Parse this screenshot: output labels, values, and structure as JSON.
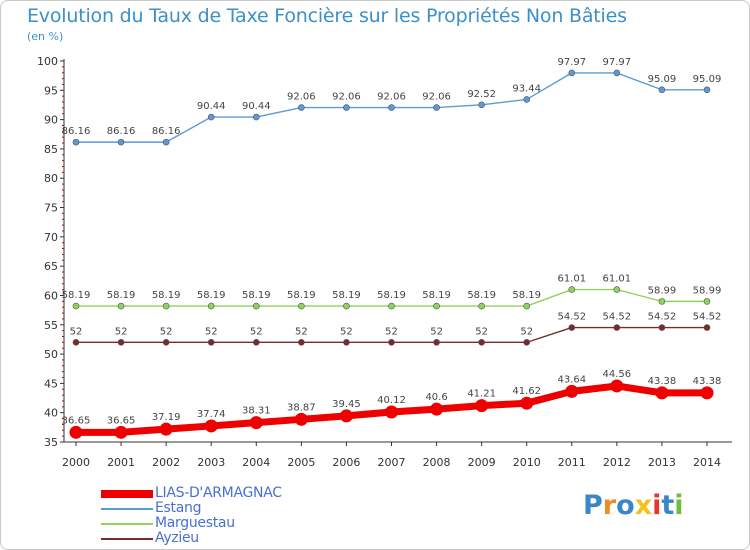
{
  "chart_data": {
    "type": "line",
    "title": "Evolution du Taux de Taxe Foncière sur les Propriétés Non Bâties",
    "subtitle": "(en %)",
    "x": [
      "2000",
      "2001",
      "2002",
      "2003",
      "2004",
      "2005",
      "2006",
      "2007",
      "2008",
      "2009",
      "2010",
      "2011",
      "2012",
      "2013",
      "2014"
    ],
    "ylim": [
      35,
      100
    ],
    "yticks": [
      35,
      40,
      45,
      50,
      55,
      60,
      65,
      70,
      75,
      80,
      85,
      90,
      95,
      100
    ],
    "grid": false,
    "legend_position": "bottom-left",
    "series": [
      {
        "name": "LIAS-D'ARMAGNAC",
        "color": "#ee0000",
        "values": [
          36.65,
          36.65,
          37.19,
          37.74,
          38.31,
          38.87,
          39.45,
          40.12,
          40.6,
          41.21,
          41.62,
          43.64,
          44.56,
          43.38,
          43.38
        ],
        "labels": [
          "36.65",
          "36.65",
          "37.19",
          "37.74",
          "38.31",
          "38.87",
          "39.45",
          "40.12",
          "40.6",
          "41.21",
          "41.62",
          "43.64",
          "44.56",
          "43.38",
          "43.38"
        ]
      },
      {
        "name": "Estang",
        "color": "#5b9bd5",
        "values": [
          86.16,
          86.16,
          86.16,
          90.44,
          90.44,
          92.06,
          92.06,
          92.06,
          92.06,
          92.52,
          93.44,
          97.97,
          97.97,
          95.09,
          95.09
        ],
        "labels": [
          "86.16",
          "86.16",
          "86.16",
          "90.44",
          "90.44",
          "92.06",
          "92.06",
          "92.06",
          "92.06",
          "92.52",
          "93.44",
          "97.97",
          "97.97",
          "95.09",
          "95.09"
        ]
      },
      {
        "name": "Marguestau",
        "color": "#8fd45a",
        "values": [
          58.19,
          58.19,
          58.19,
          58.19,
          58.19,
          58.19,
          58.19,
          58.19,
          58.19,
          58.19,
          58.19,
          61.01,
          61.01,
          58.99,
          58.99
        ],
        "labels": [
          "58.19",
          "58.19",
          "58.19",
          "58.19",
          "58.19",
          "58.19",
          "58.19",
          "58.19",
          "58.19",
          "58.19",
          "58.19",
          "61.01",
          "61.01",
          "58.99",
          "58.99"
        ]
      },
      {
        "name": "Ayzieu",
        "color": "#7a2a2a",
        "values": [
          52,
          52,
          52,
          52,
          52,
          52,
          52,
          52,
          52,
          52,
          52,
          54.52,
          54.52,
          54.52,
          54.52
        ],
        "labels": [
          "52",
          "52",
          "52",
          "52",
          "52",
          "52",
          "52",
          "52",
          "52",
          "52",
          "52",
          "54.52",
          "54.52",
          "54.52",
          "54.52"
        ]
      }
    ]
  },
  "logo": {
    "text": "Proxiti",
    "letter_colors": [
      "#3a86c8",
      "#f08a24",
      "#3a86c8",
      "#f4c21c",
      "#e8342a",
      "#3a86c8",
      "#6bbf3a"
    ]
  }
}
